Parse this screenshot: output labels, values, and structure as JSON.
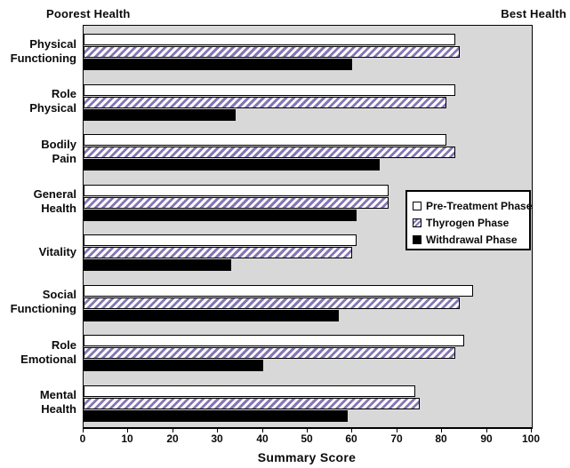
{
  "header": {
    "left_label": "Poorest Health",
    "right_label": "Best Health"
  },
  "chart_data": {
    "type": "bar",
    "orientation": "horizontal",
    "title": "",
    "xlabel": "Summary Score",
    "ylabel": "",
    "xlim": [
      0,
      100
    ],
    "x_ticks": [
      0,
      10,
      20,
      30,
      40,
      50,
      60,
      70,
      80,
      90,
      100
    ],
    "grid": false,
    "legend_position": "middle-right",
    "categories": [
      "Physical Functioning",
      "Role Physical",
      "Bodily Pain",
      "General Health",
      "Vitality",
      "Social Functioning",
      "Role Emotional",
      "Mental Health"
    ],
    "category_lines": [
      [
        "Physical",
        "Functioning"
      ],
      [
        "Role",
        "Physical"
      ],
      [
        "Bodily",
        "Pain"
      ],
      [
        "General",
        "Health"
      ],
      [
        "Vitality"
      ],
      [
        "Social",
        "Functioning"
      ],
      [
        "Role",
        "Emotional"
      ],
      [
        "Mental",
        "Health"
      ]
    ],
    "series": [
      {
        "name": "Pre-Treatment Phase",
        "style": "white",
        "values": [
          83,
          83,
          81,
          68,
          61,
          87,
          85,
          74
        ]
      },
      {
        "name": "Thyrogen Phase",
        "style": "hatched",
        "values": [
          84,
          81,
          83,
          68,
          60,
          84,
          83,
          75
        ]
      },
      {
        "name": "Withdrawal Phase",
        "style": "black",
        "values": [
          60,
          34,
          66,
          61,
          33,
          57,
          40,
          59
        ]
      }
    ],
    "annotations": [
      "Poorest Health",
      "Best Health"
    ]
  },
  "colors": {
    "plot_bg": "#d8d8d8",
    "bar_white": "#ffffff",
    "bar_black": "#000000",
    "hatch_stripe": "#8577b5",
    "border": "#000000",
    "text": "#0b0b0b"
  }
}
